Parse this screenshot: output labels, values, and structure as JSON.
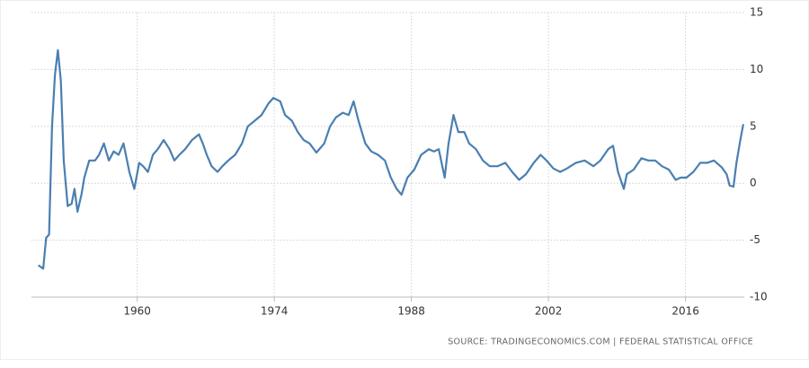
{
  "chart_data": {
    "type": "line",
    "source": "SOURCE: TRADINGECONOMICS.COM | FEDERAL STATISTICAL OFFICE",
    "x": [
      1949.9,
      1950.4,
      1950.7,
      1951.0,
      1951.3,
      1951.6,
      1951.9,
      1952.2,
      1952.5,
      1952.9,
      1953.3,
      1953.6,
      1953.9,
      1954.3,
      1954.6,
      1955.1,
      1955.7,
      1956.1,
      1956.6,
      1957.1,
      1957.6,
      1958.1,
      1958.6,
      1959.2,
      1959.7,
      1960.2,
      1960.6,
      1961.1,
      1961.6,
      1962.1,
      1962.7,
      1963.3,
      1963.8,
      1964.3,
      1964.9,
      1965.6,
      1966.3,
      1966.7,
      1967.1,
      1967.6,
      1968.2,
      1968.7,
      1969.3,
      1970.0,
      1970.7,
      1971.3,
      1972.0,
      1972.7,
      1973.4,
      1973.9,
      1974.6,
      1975.1,
      1975.8,
      1976.4,
      1977.0,
      1977.6,
      1978.3,
      1979.1,
      1979.7,
      1980.3,
      1981.0,
      1981.6,
      1982.1,
      1982.6,
      1983.3,
      1983.9,
      1984.6,
      1985.3,
      1985.9,
      1986.5,
      1987.0,
      1987.6,
      1988.3,
      1989.0,
      1989.8,
      1990.3,
      1990.8,
      1991.4,
      1991.8,
      1992.3,
      1992.8,
      1993.4,
      1993.9,
      1994.6,
      1995.3,
      1996.0,
      1996.8,
      1997.6,
      1998.3,
      1999.0,
      1999.7,
      2000.5,
      2001.2,
      2001.8,
      2002.5,
      2003.2,
      2003.9,
      2004.8,
      2005.7,
      2006.6,
      2007.3,
      2008.1,
      2008.6,
      2009.1,
      2009.7,
      2010.0,
      2010.7,
      2011.5,
      2012.2,
      2012.9,
      2013.6,
      2014.3,
      2015.0,
      2015.5,
      2016.1,
      2016.8,
      2017.5,
      2018.2,
      2018.9,
      2019.7,
      2020.2,
      2020.5,
      2020.9,
      2021.2,
      2021.6,
      2021.9
    ],
    "series": [
      {
        "color": "#4a7fb0",
        "values": [
          -7.2,
          -7.5,
          -4.8,
          -4.5,
          5,
          9.5,
          11.7,
          9,
          2,
          -2,
          -1.8,
          -0.5,
          -2.5,
          -1,
          0.5,
          2,
          2,
          2.5,
          3.5,
          2,
          2.8,
          2.5,
          3.5,
          1,
          -0.5,
          1.8,
          1.5,
          1.0,
          2.5,
          3,
          3.8,
          3,
          2,
          2.5,
          3,
          3.8,
          4.3,
          3.5,
          2.5,
          1.5,
          1.0,
          1.5,
          2,
          2.5,
          3.5,
          5,
          5.5,
          6,
          7,
          7.5,
          7.2,
          6,
          5.5,
          4.5,
          3.8,
          3.5,
          2.7,
          3.5,
          5,
          5.8,
          6.2,
          6,
          7.2,
          5.5,
          3.5,
          2.8,
          2.5,
          2.0,
          0.5,
          -0.5,
          -1.0,
          0.5,
          1.2,
          2.5,
          3,
          2.8,
          3,
          0.5,
          3.5,
          6,
          4.5,
          4.5,
          3.5,
          3,
          2,
          1.5,
          1.5,
          1.8,
          1,
          0.3,
          0.8,
          1.8,
          2.5,
          2,
          1.3,
          1,
          1.3,
          1.8,
          2,
          1.5,
          2.0,
          3,
          3.3,
          1,
          -0.5,
          0.8,
          1.2,
          2.2,
          2.0,
          2,
          1.5,
          1.2,
          0.3,
          0.5,
          0.5,
          1.0,
          1.8,
          1.8,
          2,
          1.4,
          0.8,
          -0.2,
          -0.3,
          1.8,
          3.8,
          5.2
        ]
      }
    ],
    "xlim": [
      1949.2,
      2022
    ],
    "xticks": [
      1960,
      1974,
      1988,
      2002,
      2016
    ],
    "ylim": [
      -10,
      15
    ],
    "yticks": [
      -10,
      -5,
      0,
      5,
      10,
      15
    ],
    "grid": true
  }
}
